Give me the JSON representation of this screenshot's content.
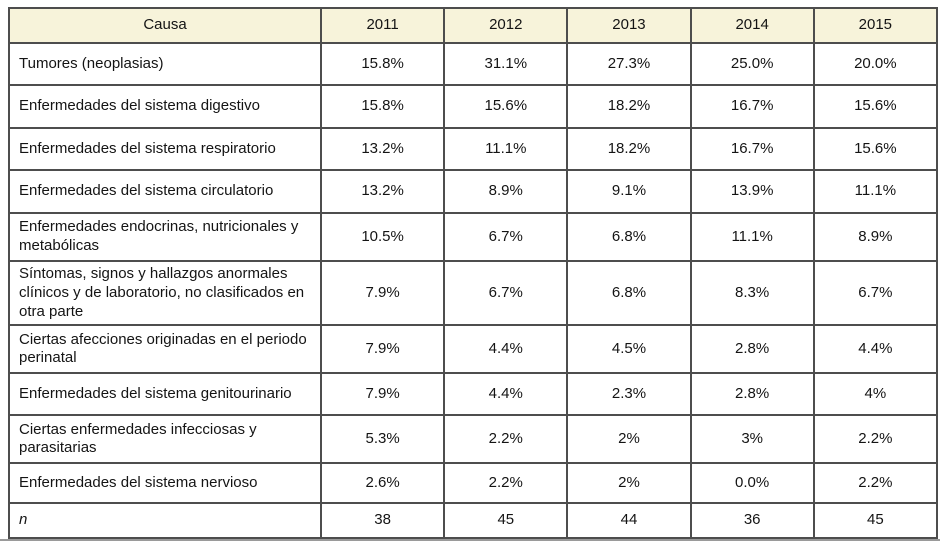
{
  "table": {
    "header": {
      "cause": "Causa",
      "years": [
        "2011",
        "2012",
        "2013",
        "2014",
        "2015"
      ]
    },
    "rows": [
      {
        "cause": "Tumores (neoplasias)",
        "values": [
          "15.8%",
          "31.1%",
          "27.3%",
          "25.0%",
          "20.0%"
        ]
      },
      {
        "cause": "Enfermedades del sistema digestivo",
        "values": [
          "15.8%",
          "15.6%",
          "18.2%",
          "16.7%",
          "15.6%"
        ]
      },
      {
        "cause": "Enfermedades del sistema respiratorio",
        "values": [
          "13.2%",
          "11.1%",
          "18.2%",
          "16.7%",
          "15.6%"
        ]
      },
      {
        "cause": "Enfermedades del sistema circulatorio",
        "values": [
          "13.2%",
          "8.9%",
          "9.1%",
          "13.9%",
          "11.1%"
        ]
      },
      {
        "cause": "Enfermedades endocrinas, nutricionales y metabólicas",
        "values": [
          "10.5%",
          "6.7%",
          "6.8%",
          "11.1%",
          "8.9%"
        ]
      },
      {
        "cause": "Síntomas, signos y hallazgos anormales clínicos y de laboratorio, no clasificados en otra parte",
        "values": [
          "7.9%",
          "6.7%",
          "6.8%",
          "8.3%",
          "6.7%"
        ]
      },
      {
        "cause": "Ciertas afecciones originadas en el periodo perinatal",
        "values": [
          "7.9%",
          "4.4%",
          "4.5%",
          "2.8%",
          "4.4%"
        ]
      },
      {
        "cause": "Enfermedades del sistema genitourinario",
        "values": [
          "7.9%",
          "4.4%",
          "2.3%",
          "2.8%",
          "4%"
        ]
      },
      {
        "cause": "Ciertas enfermedades infecciosas y parasitarias",
        "values": [
          "5.3%",
          "2.2%",
          "2%",
          "3%",
          "2.2%"
        ]
      },
      {
        "cause": "Enfermedades del sistema nervioso",
        "values": [
          "2.6%",
          "2.2%",
          "2%",
          "0.0%",
          "2.2%"
        ]
      }
    ],
    "footer": {
      "cause": "n",
      "values": [
        "38",
        "45",
        "44",
        "36",
        "45"
      ]
    }
  },
  "colors": {
    "header_bg": "#f7f3da",
    "border": "#4d4d4d",
    "text": "#141414"
  }
}
